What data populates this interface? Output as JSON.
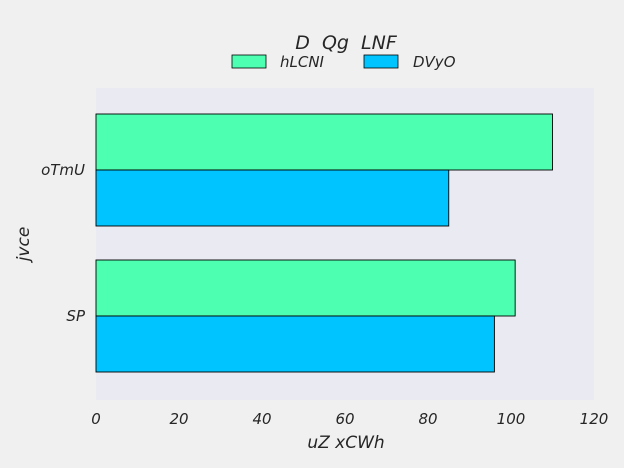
{
  "chart_data": {
    "type": "bar",
    "orientation": "horizontal",
    "title": "D  Qg  LNF",
    "xlabel": "uZ xCWh",
    "ylabel": "jvce",
    "categories": [
      "oTmU",
      "SP"
    ],
    "series": [
      {
        "name": "hLCNI",
        "values": [
          110,
          101
        ],
        "color": "#4dffb0"
      },
      {
        "name": "DVyO",
        "values": [
          85,
          96
        ],
        "color": "#00c4ff"
      }
    ],
    "xlim": [
      0,
      120
    ],
    "xticks": [
      "0",
      "20",
      "40",
      "60",
      "80",
      "100",
      "120"
    ],
    "grid": false,
    "legend_position": "top-center",
    "plot_background": "#eaeaf2"
  }
}
